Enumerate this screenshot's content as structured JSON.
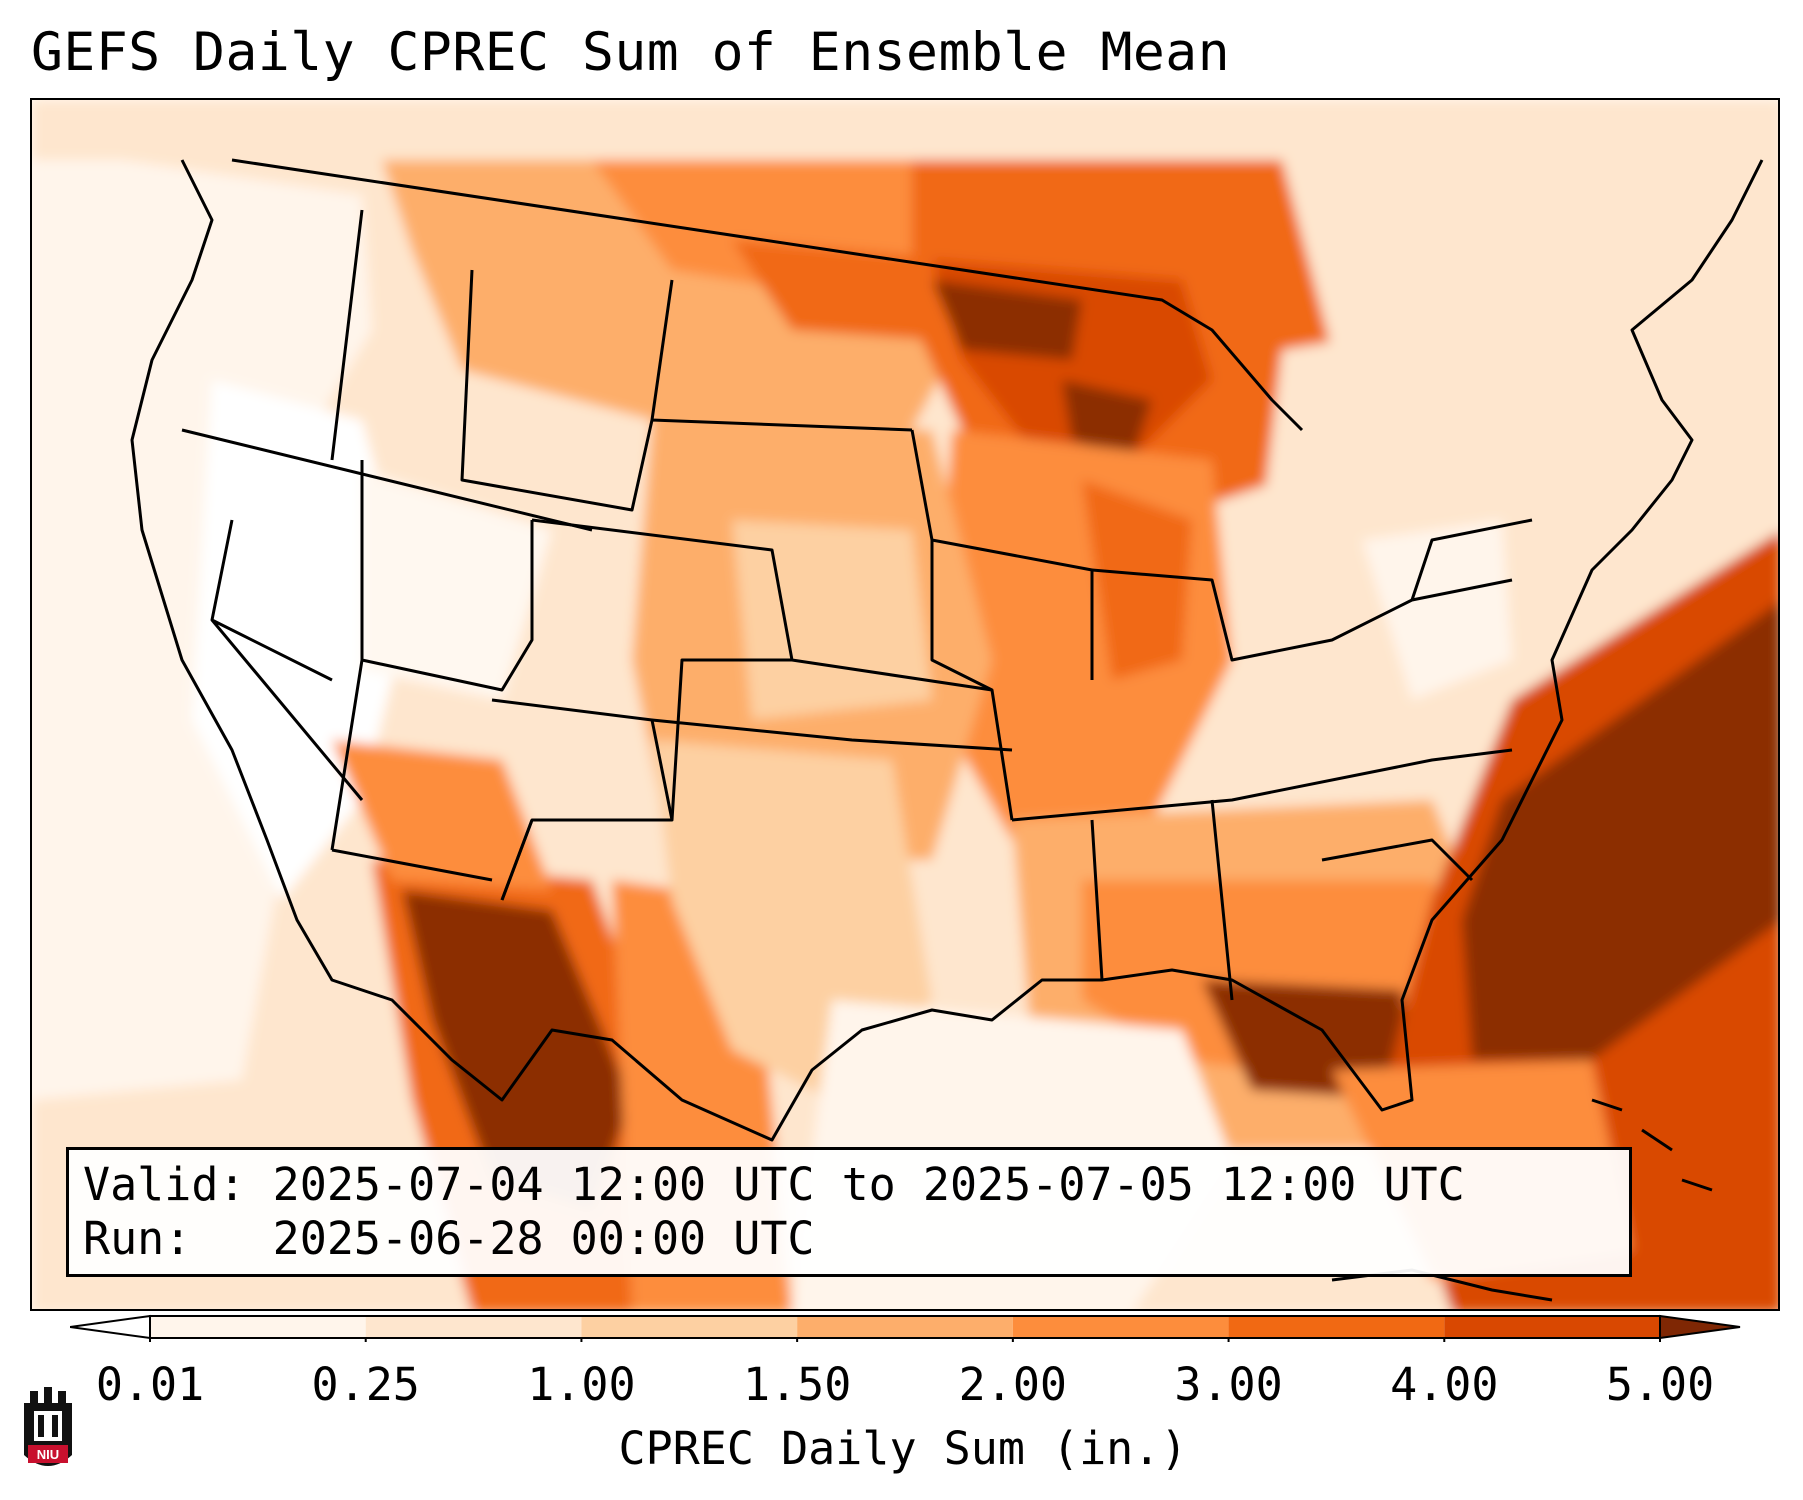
{
  "title": "GEFS Daily CPREC Sum of Ensemble Mean",
  "info": {
    "valid_label": "Valid:",
    "valid_range": "2025-07-04 12:00 UTC to 2025-07-05 12:00 UTC",
    "run_label": "Run:",
    "run_time": "2025-06-28 00:00 UTC"
  },
  "colorbar": {
    "label": "CPREC Daily Sum (in.)",
    "ticks": [
      "0.01",
      "0.25",
      "1.00",
      "1.50",
      "2.00",
      "3.00",
      "4.00",
      "5.00"
    ],
    "colors": [
      "#fff5eb",
      "#fee6ce",
      "#fdd0a2",
      "#fdae6b",
      "#fd8d3c",
      "#f16913",
      "#d94801",
      "#8c2d04"
    ],
    "under_color": "#ffffff",
    "over_color": "#7f2704"
  },
  "logo": {
    "text": "NIU"
  }
}
